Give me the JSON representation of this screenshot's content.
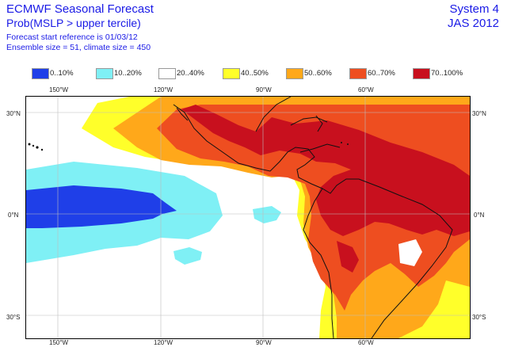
{
  "header": {
    "title": "ECMWF Seasonal Forecast",
    "subtitle": "Prob(MSLP > upper tercile)",
    "start_reference": "Forecast start reference is 01/03/12",
    "ensemble": "Ensemble size = 51, climate size = 450",
    "system": "System 4",
    "period": "JAS 2012"
  },
  "legend": [
    {
      "label": "0..10%",
      "color": "#1f3fe8"
    },
    {
      "label": "10..20%",
      "color": "#7ff0f5"
    },
    {
      "label": "20..40%",
      "color": "#ffffff"
    },
    {
      "label": "40..50%",
      "color": "#ffff2a"
    },
    {
      "label": "50..60%",
      "color": "#ffa81a"
    },
    {
      "label": "60..70%",
      "color": "#ee4e20"
    },
    {
      "label": "70..100%",
      "color": "#c8101e"
    }
  ],
  "axes": {
    "lon_top": [
      "150°W",
      "120°W",
      "90°W",
      "60°W"
    ],
    "lon_bottom": [
      "150°W",
      "120°W",
      "90°W",
      "60°W"
    ],
    "lat_left": [
      "30°N",
      "0°N",
      "30°S"
    ],
    "lat_right": [
      "30°N",
      "0°N",
      "30°S"
    ]
  }
}
